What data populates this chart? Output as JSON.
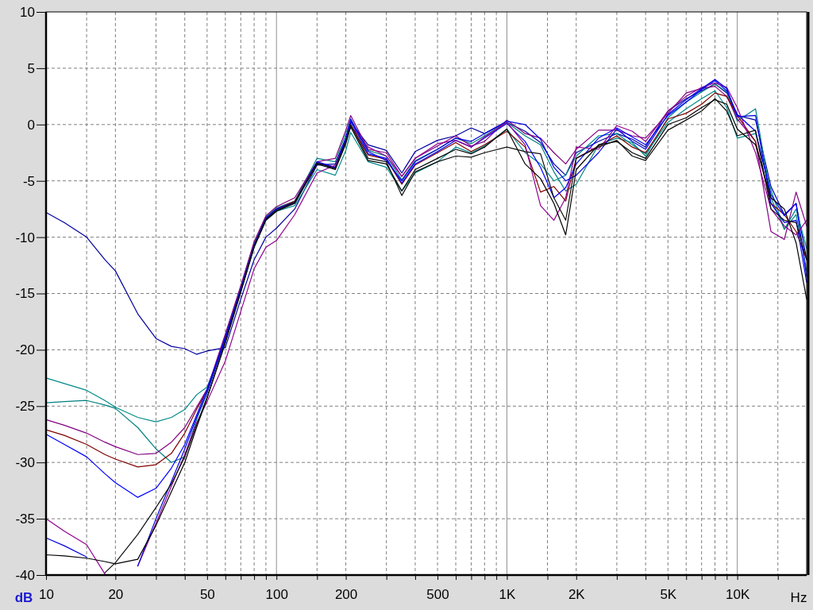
{
  "chart_data": {
    "type": "line",
    "xlabel": "Hz",
    "ylabel": "dB",
    "log": "x",
    "grid": true,
    "line_style": "solid",
    "xlim": [
      10,
      20000
    ],
    "ylim": [
      -40,
      10
    ],
    "xticks": [
      {
        "value": 10,
        "label": "10"
      },
      {
        "value": 15,
        "label": null
      },
      {
        "value": 20,
        "label": "20"
      },
      {
        "value": 30,
        "label": null
      },
      {
        "value": 40,
        "label": null
      },
      {
        "value": 50,
        "label": "50"
      },
      {
        "value": 60,
        "label": null
      },
      {
        "value": 70,
        "label": null
      },
      {
        "value": 80,
        "label": null
      },
      {
        "value": 90,
        "label": null
      },
      {
        "value": 100,
        "label": "100"
      },
      {
        "value": 150,
        "label": null
      },
      {
        "value": 200,
        "label": "200"
      },
      {
        "value": 300,
        "label": null
      },
      {
        "value": 400,
        "label": null
      },
      {
        "value": 500,
        "label": "500"
      },
      {
        "value": 600,
        "label": null
      },
      {
        "value": 700,
        "label": null
      },
      {
        "value": 800,
        "label": null
      },
      {
        "value": 900,
        "label": null
      },
      {
        "value": 1000,
        "label": "1K"
      },
      {
        "value": 1500,
        "label": null
      },
      {
        "value": 2000,
        "label": "2K"
      },
      {
        "value": 3000,
        "label": null
      },
      {
        "value": 4000,
        "label": null
      },
      {
        "value": 5000,
        "label": "5K"
      },
      {
        "value": 6000,
        "label": null
      },
      {
        "value": 7000,
        "label": null
      },
      {
        "value": 8000,
        "label": null
      },
      {
        "value": 9000,
        "label": null
      },
      {
        "value": 10000,
        "label": "10K"
      },
      {
        "value": 15000,
        "label": null
      }
    ],
    "yticks": [
      -40,
      -35,
      -30,
      -25,
      -20,
      -15,
      -10,
      -5,
      0,
      5,
      10
    ],
    "x": [
      10,
      12,
      15,
      18,
      20,
      25,
      30,
      35,
      40,
      45,
      50,
      60,
      70,
      80,
      90,
      100,
      120,
      150,
      180,
      200,
      210,
      250,
      300,
      350,
      400,
      500,
      600,
      700,
      800,
      1000,
      1200,
      1400,
      1600,
      1800,
      2000,
      2500,
      3000,
      3500,
      4000,
      5000,
      6000,
      7000,
      8000,
      9000,
      10000,
      12000,
      14000,
      16000,
      18000,
      20000
    ],
    "series": [
      {
        "color": "#0000a0",
        "values": [
          -7.8,
          -8.7,
          -10,
          -12,
          -13,
          -16.8,
          -19,
          -19.7,
          -19.9,
          -20.4,
          -20.1,
          -19.8,
          -15.5,
          -12,
          -10,
          -9.2,
          -7.5,
          -3.6,
          -3.5,
          -1.2,
          0.2,
          -1.8,
          -2.3,
          -4.3,
          -2.4,
          -1.4,
          -1.0,
          -0.3,
          -0.8,
          0.2,
          -0.6,
          -1.6,
          -3.5,
          -4.5,
          -2.5,
          -1.5,
          -0.8,
          -1.3,
          -2.0,
          1.2,
          2.3,
          3.0,
          3.6,
          2.8,
          0.8,
          0.4,
          -5.5,
          -8,
          -7,
          -12
        ]
      },
      {
        "color": "#008b8b",
        "values": [
          -22.5,
          -23,
          -23.6,
          -24.5,
          -25.1,
          -26.0,
          -26.4,
          -26.0,
          -25.3,
          -24.0,
          -23.3,
          -19.2,
          -14.8,
          -10.9,
          -8.5,
          -7.7,
          -7.2,
          -4.0,
          -4.5,
          -2.3,
          -0.7,
          -3.3,
          -3.8,
          -5.9,
          -4.3,
          -3.3,
          -2.0,
          -2.5,
          -1.9,
          -0.4,
          -2.5,
          -3.5,
          -5.0,
          -4.5,
          -2.8,
          -1.0,
          -0.8,
          -1.8,
          -2.6,
          0.2,
          1.4,
          2.3,
          3.0,
          1.5,
          -1.2,
          -0.8,
          -5.8,
          -9.3,
          -7.5,
          -11
        ]
      },
      {
        "color": "#008080",
        "values": [
          -24.7,
          -24.6,
          -24.5,
          -24.9,
          -25.2,
          -26.9,
          -28.8,
          -30.0,
          -29.5,
          -26.2,
          -23.8,
          -18.8,
          -14.5,
          -10.6,
          -8.2,
          -7.4,
          -6.8,
          -3.0,
          -3.3,
          -0.8,
          0.4,
          -2.3,
          -2.8,
          -4.9,
          -3.2,
          -2.2,
          -1.2,
          -1.7,
          -1.0,
          0.2,
          -1.0,
          -1.8,
          -4.2,
          -5.9,
          -5.3,
          -1.8,
          -1.2,
          -1.6,
          -2.8,
          0.6,
          2.0,
          2.9,
          3.6,
          2.9,
          0.3,
          1.4,
          -6.5,
          -9.3,
          -8,
          -13
        ]
      },
      {
        "color": "#800080",
        "values": [
          -26.2,
          -26.7,
          -27.4,
          -28.2,
          -28.6,
          -29.3,
          -29.2,
          -28.2,
          -26.9,
          -25.1,
          -23.5,
          -18.6,
          -14.3,
          -10.4,
          -8.1,
          -7.3,
          -6.5,
          -3.3,
          -3.0,
          -0.5,
          0.8,
          -2.2,
          -2.5,
          -4.6,
          -3.0,
          -1.9,
          -1.0,
          -1.9,
          -1.5,
          0.4,
          -0.8,
          -1.2,
          -2.5,
          -3.5,
          -2.2,
          -0.5,
          -0.5,
          -1.0,
          -1.2,
          1.0,
          2.8,
          3.2,
          3.4,
          2.5,
          0.5,
          -1.5,
          -9.5,
          -10.2,
          -6,
          -9
        ]
      },
      {
        "color": "#800000",
        "values": [
          -27.1,
          -27.6,
          -28.4,
          -29.3,
          -29.7,
          -30.4,
          -30.2,
          -29.2,
          -27.4,
          -25.3,
          -23.6,
          -18.9,
          -14.6,
          -10.7,
          -8.3,
          -7.5,
          -6.8,
          -3.4,
          -3.8,
          -1.4,
          0.0,
          -2.7,
          -3.1,
          -5.3,
          -3.6,
          -2.5,
          -1.6,
          -2.4,
          -1.8,
          -0.6,
          -2.0,
          -6.0,
          -5.5,
          -6.8,
          -3.0,
          -1.9,
          -1.0,
          -2.0,
          -2.5,
          0.5,
          1.0,
          1.8,
          2.8,
          2.5,
          0.8,
          -1.5,
          -7,
          -8,
          -9.5,
          -12
        ]
      },
      {
        "color": "#0000ff",
        "values": [
          -27.5,
          -28.4,
          -29.5,
          -31,
          -31.8,
          -33.1,
          -32.3,
          -30.5,
          -28.4,
          -25.8,
          -23.5,
          -18.9,
          -14.6,
          -10.7,
          -8.3,
          -7.5,
          -6.9,
          -3.3,
          -3.8,
          -1.2,
          0.3,
          -2.6,
          -3.0,
          -5.2,
          -3.5,
          -2.4,
          -1.4,
          -2.0,
          -1.2,
          0.1,
          -1.5,
          -3.8,
          -6.5,
          -5.6,
          -3.5,
          -1.2,
          -0.3,
          -1.1,
          -1.8,
          0.8,
          2.0,
          3.1,
          3.9,
          3.0,
          0.9,
          -0.6,
          -6.2,
          -8.1,
          -7,
          -13.5
        ]
      },
      {
        "color": "#900090",
        "values": [
          -35.0,
          -36.1,
          -37.3,
          -39.9,
          null,
          -39.2,
          -35.4,
          -32.1,
          -29.3,
          -26.5,
          -24.6,
          -21,
          -16.6,
          -12.8,
          -10.9,
          -10.3,
          -8.0,
          -4.3,
          -3.6,
          -1.6,
          -0.1,
          -2.0,
          -2.8,
          -4.6,
          -3.0,
          -1.7,
          -1.4,
          -2.0,
          -1.1,
          0.2,
          -1.8,
          -7.2,
          -8.5,
          -6.5,
          -2.0,
          -2.2,
          -0.1,
          -0.6,
          -1.5,
          1.2,
          2.5,
          3.3,
          3.7,
          3.3,
          1.5,
          -2.5,
          -7.5,
          -9,
          -9.8,
          -8.5
        ]
      },
      {
        "color": "#0000e0",
        "values": [
          -36.7,
          -37.4,
          -38.4,
          null,
          null,
          -39.2,
          -35.0,
          -31.7,
          -28.8,
          -26.0,
          -23.8,
          -19.1,
          -14.7,
          -10.8,
          -8.4,
          -7.6,
          -7.0,
          -3.4,
          -3.9,
          -1.3,
          0.5,
          -2.4,
          -3.2,
          -5.0,
          -3.3,
          -2.2,
          -1.2,
          -1.5,
          -0.8,
          0.3,
          0.0,
          -1.3,
          -3.8,
          -5.0,
          -4.5,
          -2.5,
          -0.4,
          -1.5,
          -2.2,
          0.9,
          2.2,
          3.2,
          4.0,
          3.2,
          0.7,
          0.8,
          -7.0,
          -8.7,
          -8.5,
          -14
        ]
      },
      {
        "color": "#000000",
        "values": [
          -38.2,
          -38.3,
          -38.5,
          -38.8,
          -39.0,
          -38.6,
          -35.6,
          -32.6,
          -30.0,
          -26.9,
          -24.3,
          -19.4,
          -14.9,
          -10.9,
          -8.5,
          -7.7,
          -7.0,
          -3.5,
          -4.0,
          -1.7,
          -0.2,
          -3.2,
          -3.5,
          -5.9,
          -4.0,
          -3.0,
          -2.2,
          -2.6,
          -2.0,
          -0.4,
          -3.5,
          -4.8,
          -7.0,
          -9.8,
          -4.0,
          -1.8,
          -1.5,
          -2.5,
          -3.0,
          0.0,
          0.6,
          1.5,
          2.2,
          1.8,
          -0.4,
          -1.8,
          -6.5,
          -7.5,
          -10.5,
          -15.5
        ]
      },
      {
        "color": "#101010",
        "values": [
          null,
          null,
          null,
          -39.8,
          -38.9,
          -36.4,
          -34.0,
          -31.9,
          -29.5,
          -26.7,
          -24.2,
          -19.3,
          -14.8,
          -10.8,
          -8.4,
          -7.6,
          -6.9,
          -3.4,
          -3.9,
          -1.5,
          0.0,
          -3.0,
          -3.3,
          -6.3,
          -4.2,
          -3.3,
          -2.8,
          -2.9,
          -2.5,
          -2.0,
          -2.4,
          -2.6,
          -6.5,
          -8.5,
          -3.0,
          -2.0,
          -1.4,
          -2.8,
          -3.2,
          -0.5,
          0.4,
          1.2,
          2.3,
          1.2,
          -1.0,
          -0.5,
          -7.5,
          -8.5,
          -8.7,
          -12
        ]
      }
    ]
  }
}
